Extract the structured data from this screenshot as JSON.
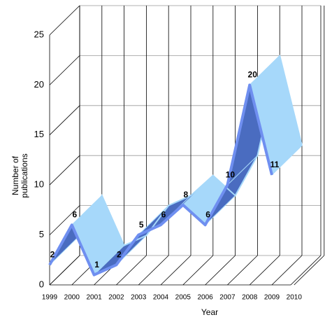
{
  "chart_data": {
    "type": "line3d",
    "x_label": "Year",
    "y_label": "Number of publications",
    "categories": [
      "1999",
      "2000",
      "2001",
      "2002",
      "2003",
      "2004",
      "2005",
      "2006",
      "2007",
      "2008",
      "2009",
      "2010"
    ],
    "values": [
      2,
      6,
      1,
      2,
      5,
      6,
      8,
      6,
      10,
      20,
      11,
      null
    ],
    "color": "#a6d8fa",
    "shade_color": "#4a6cc0",
    "edge_color": "#6f8ff0",
    "ylim": [
      0,
      25
    ],
    "yticks": [
      0,
      5,
      10,
      15,
      20,
      25
    ],
    "grid": true
  }
}
